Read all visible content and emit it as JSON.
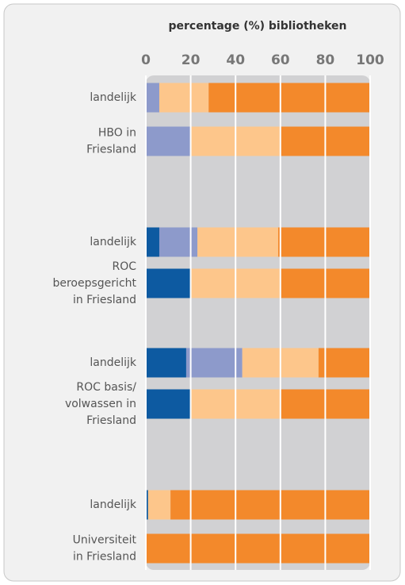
{
  "chart_data": {
    "type": "stacked-barh",
    "title": "percentage (%) bibliotheken",
    "categories": [
      [
        "landelijk"
      ],
      [
        "HBO in",
        "Friesland"
      ],
      [
        "landelijk"
      ],
      [
        "ROC",
        "beroepsgericht",
        "in Friesland"
      ],
      [
        "landelijk"
      ],
      [
        "ROC basis/",
        "volwassen in",
        "Friesland"
      ],
      [
        "landelijk"
      ],
      [
        "Universiteit",
        "in Friesland"
      ]
    ],
    "series": [
      {
        "color": "#0d5aa1",
        "values": [
          0,
          0,
          6,
          20,
          18,
          20,
          1,
          0
        ]
      },
      {
        "color": "#8d9acb",
        "values": [
          6,
          20,
          17,
          0,
          25,
          0,
          0,
          0
        ]
      },
      {
        "color": "#fdc68b",
        "values": [
          22,
          40,
          36,
          40,
          34,
          40,
          10,
          0
        ]
      },
      {
        "color": "#f3892b",
        "values": [
          72,
          40,
          41,
          40,
          23,
          40,
          89,
          100
        ]
      }
    ],
    "xlim": [
      0,
      100
    ],
    "xticks": [
      0,
      20,
      40,
      60,
      80,
      100
    ],
    "grid": true
  }
}
